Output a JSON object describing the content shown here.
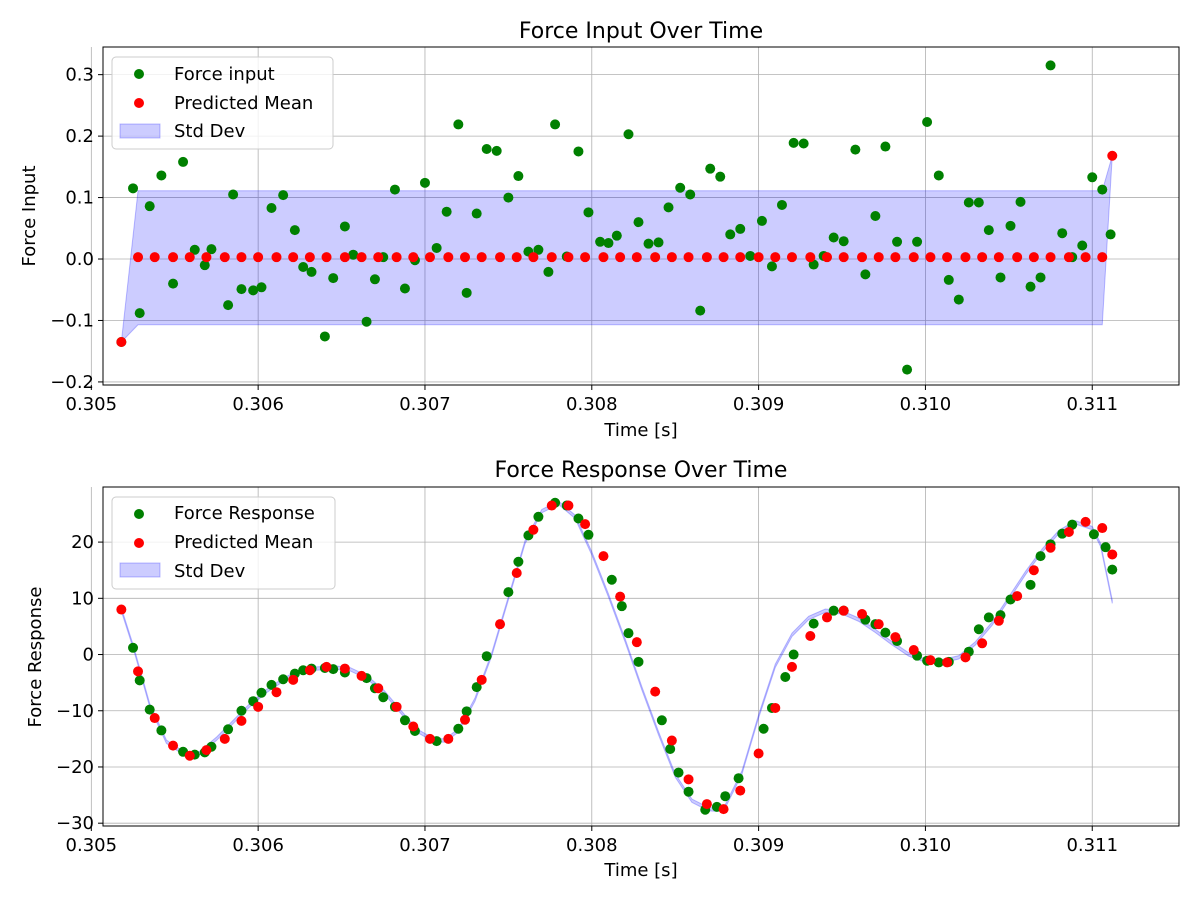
{
  "chart_data": [
    {
      "type": "scatter",
      "title": "Force Input Over Time",
      "xlabel": "Time [s]",
      "ylabel": "Force Input",
      "xlim": [
        0.30507,
        0.31152
      ],
      "ylim": [
        -0.205,
        0.345
      ],
      "xticks": [
        0.305,
        0.306,
        0.307,
        0.308,
        0.309,
        0.31,
        0.311
      ],
      "xtick_labels": [
        "0.305",
        "0.306",
        "0.307",
        "0.308",
        "0.309",
        "0.310",
        "0.311"
      ],
      "yticks": [
        -0.2,
        -0.1,
        0.0,
        0.1,
        0.2,
        0.3
      ],
      "ytick_labels": [
        "−0.2",
        "−0.1",
        "0.0",
        "0.1",
        "0.2",
        "0.3"
      ],
      "grid": true,
      "legend_position": "top-left",
      "legend": [
        "Force input",
        "Predicted Mean",
        "Std Dev"
      ],
      "colors": {
        "observed": "#008000",
        "mean": "#ff0000",
        "band": "#0000ff"
      },
      "series": [
        {
          "name": "Force input",
          "x": [
            0.30518,
            0.30525,
            0.30529,
            0.30535,
            0.30542,
            0.30549,
            0.30555,
            0.30562,
            0.30568,
            0.30572,
            0.30582,
            0.30585,
            0.3059,
            0.30597,
            0.30602,
            0.30608,
            0.30615,
            0.30622,
            0.30627,
            0.30632,
            0.3064,
            0.30645,
            0.30652,
            0.30657,
            0.30665,
            0.3067,
            0.30675,
            0.30682,
            0.30688,
            0.30694,
            0.307,
            0.30707,
            0.30713,
            0.3072,
            0.30725,
            0.30731,
            0.30737,
            0.30743,
            0.3075,
            0.30756,
            0.30762,
            0.30768,
            0.30774,
            0.30778,
            0.30785,
            0.30792,
            0.30798,
            0.30805,
            0.3081,
            0.30815,
            0.30822,
            0.30828,
            0.30834,
            0.3084,
            0.30846,
            0.30853,
            0.30859,
            0.30865,
            0.30871,
            0.30877,
            0.30883,
            0.30889,
            0.30895,
            0.30902,
            0.30908,
            0.30914,
            0.30921,
            0.30927,
            0.30933,
            0.30939,
            0.30945,
            0.30951,
            0.30958,
            0.30964,
            0.3097,
            0.30976,
            0.30983,
            0.30989,
            0.30995,
            0.31001,
            0.31008,
            0.31014,
            0.3102,
            0.31026,
            0.31032,
            0.31038,
            0.31045,
            0.31051,
            0.31057,
            0.31063,
            0.31069,
            0.31075,
            0.31082,
            0.31088,
            0.31094,
            0.311,
            0.31106,
            0.31111
          ],
          "y": [
            -0.135,
            0.115,
            -0.088,
            0.086,
            0.136,
            -0.04,
            0.158,
            0.015,
            -0.01,
            0.016,
            -0.075,
            0.105,
            -0.049,
            -0.051,
            -0.046,
            0.083,
            0.104,
            0.047,
            -0.013,
            -0.021,
            -0.126,
            -0.031,
            0.053,
            0.007,
            -0.102,
            -0.033,
            0.003,
            0.113,
            -0.048,
            -0.002,
            0.124,
            0.018,
            0.077,
            0.219,
            -0.055,
            0.074,
            0.179,
            0.176,
            0.1,
            0.135,
            0.012,
            0.015,
            -0.021,
            0.219,
            0.004,
            0.175,
            0.076,
            0.028,
            0.026,
            0.038,
            0.203,
            0.06,
            0.025,
            0.027,
            0.084,
            0.116,
            0.105,
            -0.084,
            0.147,
            0.134,
            0.04,
            0.049,
            0.005,
            0.062,
            -0.012,
            0.088,
            0.189,
            0.188,
            -0.009,
            0.005,
            0.035,
            0.029,
            0.178,
            -0.025,
            0.07,
            0.183,
            0.028,
            -0.18,
            0.028,
            0.223,
            0.136,
            -0.034,
            -0.066,
            0.092,
            0.092,
            0.047,
            -0.03,
            0.054,
            0.093,
            -0.045,
            -0.03,
            0.315,
            0.042,
            0.003,
            0.022,
            0.133,
            0.113,
            0.04
          ]
        },
        {
          "name": "Predicted Mean",
          "x": [
            0.30518,
            0.30528,
            0.30538,
            0.30549,
            0.30559,
            0.30569,
            0.3058,
            0.3059,
            0.306,
            0.30611,
            0.30621,
            0.30631,
            0.30641,
            0.30652,
            0.30662,
            0.30672,
            0.30683,
            0.30693,
            0.30703,
            0.30714,
            0.30724,
            0.30734,
            0.30745,
            0.30755,
            0.30765,
            0.30776,
            0.30786,
            0.30796,
            0.30807,
            0.30817,
            0.30827,
            0.30838,
            0.30848,
            0.30858,
            0.30869,
            0.30879,
            0.30889,
            0.309,
            0.3091,
            0.3092,
            0.30931,
            0.30941,
            0.30951,
            0.30962,
            0.30972,
            0.30982,
            0.30993,
            0.31003,
            0.31013,
            0.31024,
            0.31034,
            0.31044,
            0.31055,
            0.31065,
            0.31075,
            0.31086,
            0.31096,
            0.31106,
            0.31112
          ],
          "y": [
            -0.135,
            0.003,
            0.003,
            0.003,
            0.003,
            0.003,
            0.003,
            0.003,
            0.003,
            0.003,
            0.003,
            0.003,
            0.003,
            0.003,
            0.003,
            0.003,
            0.003,
            0.003,
            0.003,
            0.003,
            0.003,
            0.003,
            0.003,
            0.003,
            0.003,
            0.003,
            0.003,
            0.003,
            0.003,
            0.003,
            0.003,
            0.003,
            0.003,
            0.003,
            0.003,
            0.003,
            0.003,
            0.003,
            0.003,
            0.003,
            0.003,
            0.003,
            0.003,
            0.003,
            0.003,
            0.003,
            0.003,
            0.003,
            0.003,
            0.003,
            0.003,
            0.003,
            0.003,
            0.003,
            0.003,
            0.003,
            0.003,
            0.003,
            0.168
          ]
        },
        {
          "name": "Std Dev",
          "band": {
            "x": [
              0.30518,
              0.30528,
              0.31106,
              0.31112
            ],
            "lower": [
              -0.135,
              -0.107,
              -0.107,
              0.168
            ],
            "upper": [
              -0.135,
              0.111,
              0.111,
              0.168
            ]
          }
        }
      ]
    },
    {
      "type": "scatter",
      "title": "Force Response Over Time",
      "xlabel": "Time [s]",
      "ylabel": "Force Response",
      "xlim": [
        0.30507,
        0.31152
      ],
      "ylim": [
        -30.5,
        29.8
      ],
      "xticks": [
        0.305,
        0.306,
        0.307,
        0.308,
        0.309,
        0.31,
        0.311
      ],
      "xtick_labels": [
        "0.305",
        "0.306",
        "0.307",
        "0.308",
        "0.309",
        "0.310",
        "0.311"
      ],
      "yticks": [
        -30,
        -20,
        -10,
        0,
        10,
        20
      ],
      "ytick_labels": [
        "−30",
        "−20",
        "−10",
        "0",
        "10",
        "20"
      ],
      "grid": true,
      "legend_position": "top-left",
      "legend": [
        "Force Response",
        "Predicted Mean",
        "Std Dev"
      ],
      "colors": {
        "observed": "#008000",
        "mean": "#ff0000",
        "band": "#0000ff"
      },
      "response_curve": {
        "x": [
          0.30518,
          0.30525,
          0.30535,
          0.30545,
          0.30555,
          0.3056,
          0.30565,
          0.30575,
          0.30585,
          0.30595,
          0.30605,
          0.30615,
          0.30625,
          0.30635,
          0.30645,
          0.30655,
          0.30665,
          0.30675,
          0.30685,
          0.30695,
          0.30705,
          0.30712,
          0.3072,
          0.3073,
          0.3074,
          0.3075,
          0.3076,
          0.3077,
          0.3078,
          0.3079,
          0.308,
          0.3081,
          0.3082,
          0.3083,
          0.3084,
          0.3085,
          0.3086,
          0.3087,
          0.30875,
          0.3088,
          0.3089,
          0.309,
          0.3091,
          0.3092,
          0.3093,
          0.3094,
          0.3095,
          0.3096,
          0.3097,
          0.3098,
          0.3099,
          0.31,
          0.3101,
          0.3102,
          0.3103,
          0.3104,
          0.3105,
          0.3106,
          0.3107,
          0.3108,
          0.3109,
          0.311,
          0.31105,
          0.31112
        ],
        "y": [
          8,
          1.5,
          -9,
          -15.5,
          -17.5,
          -18,
          -17.5,
          -15,
          -12,
          -9,
          -6.5,
          -4.5,
          -3,
          -2.5,
          -2.3,
          -2.6,
          -4,
          -6.5,
          -10,
          -13.5,
          -15.2,
          -15.3,
          -13.5,
          -8,
          0,
          10,
          20,
          25.5,
          27,
          24.5,
          18,
          10.5,
          2.5,
          -6,
          -14,
          -21.5,
          -26,
          -27.5,
          -27.6,
          -27,
          -21,
          -11,
          -2,
          3.5,
          6.5,
          7.8,
          7.5,
          6.2,
          4.2,
          2,
          0,
          -1.1,
          -1.2,
          -0.5,
          2,
          5.5,
          10,
          14.5,
          18.5,
          21.8,
          23.5,
          22.5,
          19.5,
          9.4
        ]
      },
      "series": [
        {
          "name": "Force Response",
          "x": [
            0.30525,
            0.30529,
            0.30535,
            0.30542,
            0.30555,
            0.30562,
            0.30568,
            0.30572,
            0.30582,
            0.3059,
            0.30597,
            0.30602,
            0.30608,
            0.30615,
            0.30622,
            0.30627,
            0.30632,
            0.3064,
            0.30645,
            0.30652,
            0.30665,
            0.3067,
            0.30675,
            0.30682,
            0.30688,
            0.30694,
            0.30707,
            0.3072,
            0.30725,
            0.30731,
            0.30737,
            0.3075,
            0.30756,
            0.30762,
            0.30768,
            0.30778,
            0.30785,
            0.30792,
            0.30798,
            0.30812,
            0.30818,
            0.30822,
            0.30828,
            0.30842,
            0.30847,
            0.30852,
            0.30858,
            0.30868,
            0.30875,
            0.3088,
            0.30888,
            0.30903,
            0.30908,
            0.30916,
            0.30921,
            0.30933,
            0.30945,
            0.30951,
            0.30964,
            0.3097,
            0.30976,
            0.30983,
            0.30995,
            0.31001,
            0.31008,
            0.31014,
            0.31026,
            0.31032,
            0.31038,
            0.31045,
            0.31051,
            0.31063,
            0.31069,
            0.31075,
            0.31082,
            0.31088,
            0.31101,
            0.31108,
            0.31112
          ],
          "y": [
            1.2,
            -4.6,
            -9.8,
            -13.5,
            -17.3,
            -17.8,
            -17.4,
            -16.4,
            -13.3,
            -10,
            -8.3,
            -6.8,
            -5.4,
            -4.4,
            -3.4,
            -2.8,
            -2.5,
            -2.4,
            -2.6,
            -3.2,
            -4.2,
            -6,
            -7.6,
            -9.3,
            -11.7,
            -13.6,
            -15.4,
            -13.2,
            -10.1,
            -5.8,
            -0.3,
            11.1,
            16.5,
            21.2,
            24.5,
            27,
            26.5,
            24.2,
            21.3,
            13.3,
            8.6,
            3.8,
            -1.3,
            -11.7,
            -16.8,
            -21,
            -24.4,
            -27.6,
            -27.1,
            -25.2,
            -22,
            -13.2,
            -9.5,
            -4,
            0,
            5.5,
            7.8,
            7.8,
            6.2,
            5.4,
            3.9,
            2.4,
            -0.2,
            -1.1,
            -1.4,
            -1.3,
            0.5,
            4.5,
            6.6,
            7,
            9.8,
            12.4,
            17.5,
            19.6,
            21.5,
            23.1,
            21.4,
            19.1,
            15.1
          ]
        },
        {
          "name": "Predicted Mean",
          "x": [
            0.30518,
            0.30528,
            0.30538,
            0.30549,
            0.30559,
            0.30569,
            0.3058,
            0.3059,
            0.306,
            0.30611,
            0.30621,
            0.30631,
            0.30641,
            0.30652,
            0.30662,
            0.30672,
            0.30683,
            0.30693,
            0.30703,
            0.30714,
            0.30724,
            0.30734,
            0.30745,
            0.30755,
            0.30765,
            0.30776,
            0.30786,
            0.30796,
            0.30807,
            0.30817,
            0.30827,
            0.30838,
            0.30848,
            0.30858,
            0.30869,
            0.30879,
            0.30889,
            0.309,
            0.3091,
            0.3092,
            0.30931,
            0.30941,
            0.30951,
            0.30962,
            0.30972,
            0.30982,
            0.30993,
            0.31003,
            0.31013,
            0.31024,
            0.31034,
            0.31044,
            0.31055,
            0.31065,
            0.31075,
            0.31086,
            0.31096,
            0.31106,
            0.31112
          ],
          "y": [
            8,
            -3,
            -11.3,
            -16.2,
            -18,
            -17,
            -15,
            -11.8,
            -9.3,
            -6.7,
            -4.5,
            -2.8,
            -2.2,
            -2.5,
            -3.8,
            -6,
            -9.3,
            -12.8,
            -15,
            -15,
            -11.6,
            -4.5,
            5.4,
            14.5,
            22.2,
            26.5,
            26.5,
            23.2,
            17.5,
            10.3,
            2.2,
            -6.6,
            -15.3,
            -22.2,
            -26.6,
            -27.5,
            -24.2,
            -17.6,
            -9.5,
            -2.2,
            3.3,
            6.6,
            7.8,
            7.2,
            5.4,
            3.1,
            0.8,
            -1,
            -1.4,
            -0.5,
            2,
            6,
            10.4,
            15,
            19,
            21.8,
            23.6,
            22.5,
            17.8
          ]
        },
        {
          "name": "Std Dev",
          "band_width": 0.3
        }
      ]
    }
  ]
}
